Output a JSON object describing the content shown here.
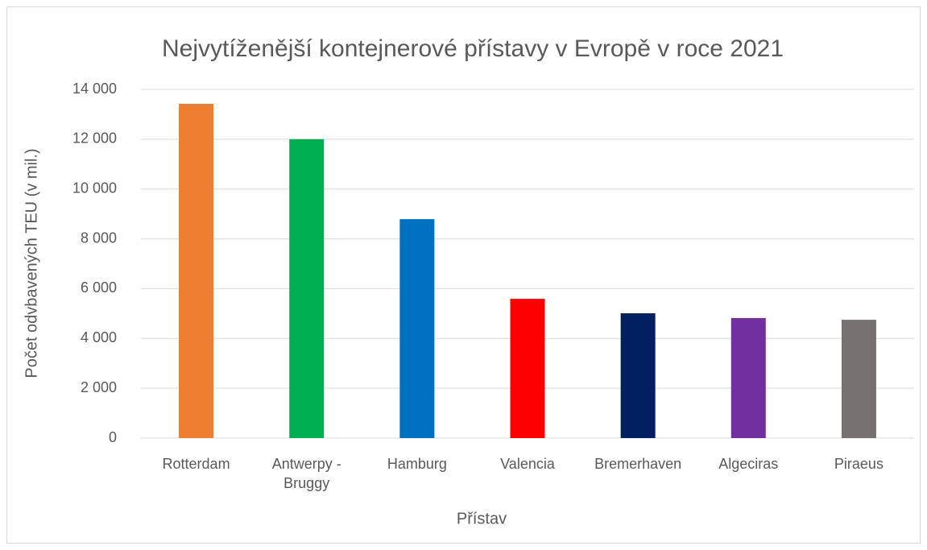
{
  "chart_data": {
    "type": "bar",
    "title": "Nejvytíženější kontejnerové přístavy v Evropě v roce 2021",
    "x_label": "Přístav",
    "y_label": "Počet odvbavených TEU (v mil.)",
    "categories": [
      "Rotterdam",
      "Antwerpy - Bruggy",
      "Hamburg",
      "Valencia",
      "Bremerhaven",
      "Algeciras",
      "Piraeus"
    ],
    "values": [
      13420,
      12000,
      8790,
      5590,
      5010,
      4820,
      4750
    ],
    "colors": [
      "#ed7d31",
      "#00b050",
      "#0070c0",
      "#ff0000",
      "#002060",
      "#7030a0",
      "#767171"
    ],
    "ylim": [
      0,
      14000
    ],
    "yticks": [
      0,
      {
        "value": 2000,
        "label": "2 000"
      },
      {
        "value": 4000,
        "label": "4 000"
      },
      {
        "value": 6000,
        "label": "6 000"
      },
      {
        "value": 8000,
        "label": "8 000"
      },
      {
        "value": 10000,
        "label": "10 000"
      },
      {
        "value": 12000,
        "label": "12 000"
      },
      {
        "value": 14000,
        "label": "14 000"
      }
    ],
    "grid": true
  }
}
